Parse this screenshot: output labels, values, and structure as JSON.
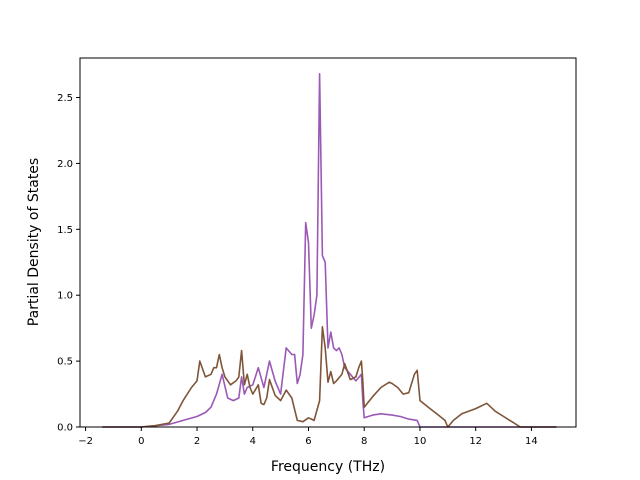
{
  "chart_data": {
    "type": "line",
    "title": "",
    "xlabel": "Frequency (THz)",
    "ylabel": "Partial Density of States",
    "xlim": [
      -2.2,
      15.6
    ],
    "ylim": [
      0.0,
      2.8
    ],
    "xticks": [
      -2,
      0,
      2,
      4,
      6,
      8,
      10,
      12,
      14
    ],
    "yticks": [
      0.0,
      0.5,
      1.0,
      1.5,
      2.0,
      2.5
    ],
    "xtick_labels": [
      "−2",
      "0",
      "2",
      "4",
      "6",
      "8",
      "10",
      "12",
      "14"
    ],
    "ytick_labels": [
      "0.0",
      "0.5",
      "1.0",
      "1.5",
      "2.0",
      "2.5"
    ],
    "grid": false,
    "series": [
      {
        "color": "#9b59b6",
        "x": [
          -1.4,
          0.0,
          0.5,
          1.0,
          1.5,
          2.0,
          2.3,
          2.5,
          2.7,
          2.9,
          3.1,
          3.3,
          3.5,
          3.6,
          3.7,
          3.8,
          4.0,
          4.2,
          4.4,
          4.5,
          4.6,
          4.8,
          5.0,
          5.2,
          5.4,
          5.5,
          5.6,
          5.7,
          5.8,
          5.9,
          6.0,
          6.1,
          6.2,
          6.3,
          6.4,
          6.5,
          6.6,
          6.7,
          6.8,
          6.9,
          7.0,
          7.1,
          7.2,
          7.3,
          7.5,
          7.7,
          7.9,
          7.95,
          8.0,
          8.3,
          8.6,
          9.0,
          9.3,
          9.6,
          9.9,
          10.0,
          10.5,
          11.0,
          12.0,
          13.0,
          14.0,
          14.9
        ],
        "y": [
          0.0,
          0.0,
          0.01,
          0.02,
          0.05,
          0.08,
          0.11,
          0.15,
          0.25,
          0.4,
          0.22,
          0.2,
          0.22,
          0.38,
          0.25,
          0.3,
          0.32,
          0.45,
          0.3,
          0.4,
          0.5,
          0.35,
          0.25,
          0.6,
          0.55,
          0.55,
          0.33,
          0.4,
          0.55,
          1.55,
          1.4,
          0.75,
          0.85,
          1.0,
          2.68,
          1.3,
          1.25,
          0.6,
          0.72,
          0.6,
          0.58,
          0.6,
          0.55,
          0.45,
          0.4,
          0.35,
          0.4,
          0.2,
          0.07,
          0.09,
          0.1,
          0.09,
          0.08,
          0.06,
          0.05,
          0.0,
          0.0,
          0.0,
          0.0,
          0.0,
          0.0,
          0.0
        ]
      },
      {
        "color": "#7f5539",
        "x": [
          -1.4,
          0.0,
          0.5,
          1.0,
          1.3,
          1.5,
          1.8,
          2.0,
          2.1,
          2.3,
          2.5,
          2.6,
          2.7,
          2.8,
          2.9,
          3.0,
          3.2,
          3.4,
          3.5,
          3.6,
          3.7,
          3.8,
          3.9,
          4.0,
          4.2,
          4.3,
          4.4,
          4.5,
          4.6,
          4.8,
          5.0,
          5.2,
          5.4,
          5.6,
          5.8,
          6.0,
          6.2,
          6.4,
          6.5,
          6.6,
          6.7,
          6.8,
          6.9,
          7.0,
          7.2,
          7.3,
          7.5,
          7.7,
          7.8,
          7.9,
          7.95,
          8.0,
          8.3,
          8.6,
          8.9,
          9.0,
          9.2,
          9.4,
          9.6,
          9.8,
          9.9,
          10.0,
          10.3,
          10.6,
          10.9,
          11.0,
          11.2,
          11.5,
          12.0,
          12.4,
          12.7,
          13.0,
          13.3,
          13.6,
          14.0,
          14.9
        ],
        "y": [
          0.0,
          0.0,
          0.01,
          0.03,
          0.12,
          0.2,
          0.3,
          0.35,
          0.5,
          0.38,
          0.4,
          0.45,
          0.45,
          0.55,
          0.45,
          0.38,
          0.32,
          0.35,
          0.38,
          0.58,
          0.32,
          0.4,
          0.3,
          0.25,
          0.32,
          0.18,
          0.17,
          0.22,
          0.36,
          0.24,
          0.2,
          0.28,
          0.22,
          0.05,
          0.04,
          0.07,
          0.05,
          0.2,
          0.76,
          0.6,
          0.34,
          0.42,
          0.33,
          0.35,
          0.4,
          0.48,
          0.36,
          0.38,
          0.45,
          0.5,
          0.35,
          0.15,
          0.23,
          0.3,
          0.34,
          0.33,
          0.3,
          0.25,
          0.26,
          0.4,
          0.43,
          0.2,
          0.15,
          0.1,
          0.05,
          0.0,
          0.05,
          0.1,
          0.14,
          0.18,
          0.12,
          0.08,
          0.04,
          0.0,
          0.0,
          0.0
        ]
      }
    ]
  }
}
